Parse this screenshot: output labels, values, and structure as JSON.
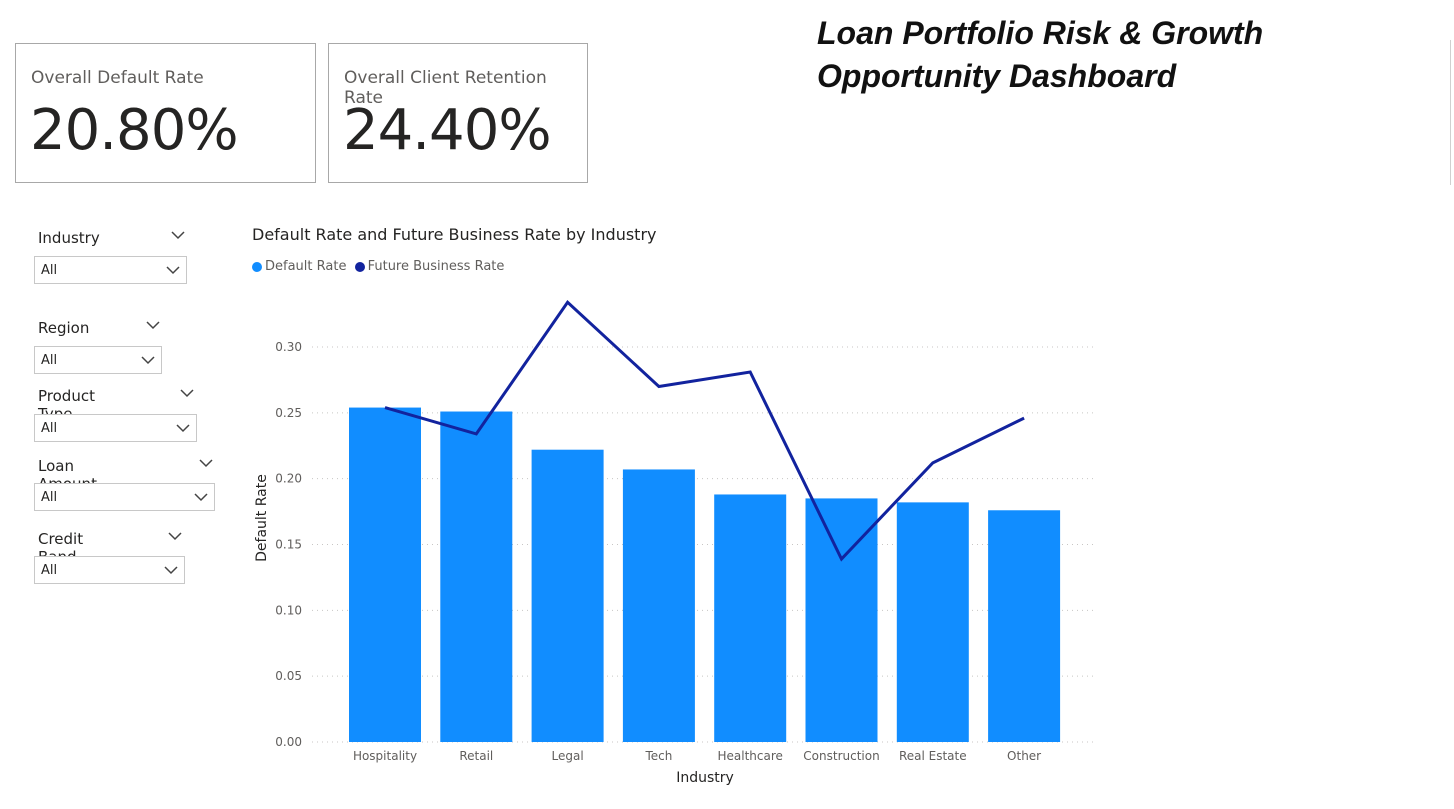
{
  "dashboard": {
    "title": "Loan Portfolio Risk & Growth Opportunity Dashboard"
  },
  "kpis": [
    {
      "label": "Overall Default Rate",
      "value": "20.80%"
    },
    {
      "label": "Overall Client Retention Rate",
      "value": "24.40%"
    }
  ],
  "slicers": [
    {
      "label": "Industry",
      "value": "All"
    },
    {
      "label": "Region",
      "value": "All"
    },
    {
      "label": "Product Type",
      "value": "All"
    },
    {
      "label": "Loan Amount Band",
      "value": "All"
    },
    {
      "label": "Credit Band",
      "value": "All"
    }
  ],
  "colors": {
    "default_rate": "#118dff",
    "future_business_rate": "#12239e",
    "gridline": "#c8c6c4"
  },
  "chart_data": {
    "type": "bar",
    "title": "Default Rate and Future Business Rate by Industry",
    "xlabel": "Industry",
    "ylabel": "Default Rate",
    "ylim": [
      0,
      0.3
    ],
    "yticks": [
      "0.00",
      "0.05",
      "0.10",
      "0.15",
      "0.20",
      "0.25",
      "0.30"
    ],
    "categories": [
      "Hospitality",
      "Retail",
      "Legal",
      "Tech",
      "Healthcare",
      "Construction",
      "Real Estate",
      "Other"
    ],
    "series": [
      {
        "name": "Default Rate",
        "type": "bar",
        "values": [
          0.254,
          0.251,
          0.222,
          0.207,
          0.188,
          0.185,
          0.182,
          0.176
        ]
      },
      {
        "name": "Future Business Rate",
        "type": "line",
        "values": [
          0.254,
          0.234,
          0.334,
          0.27,
          0.281,
          0.139,
          0.212,
          0.246
        ]
      }
    ],
    "grid": true,
    "legend_position": "top-left"
  }
}
